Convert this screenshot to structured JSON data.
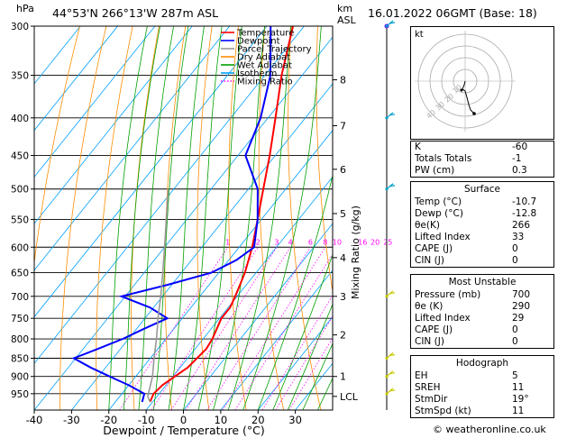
{
  "header": {
    "hpa_label": "hPa",
    "location": "44°53'N  266°13'W  287m  ASL",
    "km_label": "km",
    "asl_label": "ASL",
    "datetime": "16.01.2022  06GMT  (Base: 18)"
  },
  "chart_data": {
    "type": "line",
    "title": "",
    "xlabel": "Dewpoint / Temperature (°C)",
    "ylabel": "hPa",
    "right_ylabel": "Mixing Ratio (g/kg)",
    "xlim": [
      -40,
      40
    ],
    "ylim": [
      300,
      1000
    ],
    "y_scale": "log",
    "x_ticks": [
      -40,
      -30,
      -20,
      -10,
      0,
      10,
      20,
      30
    ],
    "x_tick_labels": [
      "-40",
      "-30",
      "-20",
      "-10",
      "0",
      "10",
      "20",
      "30"
    ],
    "pressure_levels": [
      300,
      350,
      400,
      450,
      500,
      550,
      600,
      650,
      700,
      750,
      800,
      850,
      900,
      950
    ],
    "pressure_labels": [
      "300",
      "350",
      "400",
      "450",
      "500",
      "550",
      "600",
      "650",
      "700",
      "750",
      "800",
      "850",
      "900",
      "950"
    ],
    "km_ticks": [
      {
        "label": "8",
        "p": 355
      },
      {
        "label": "7",
        "p": 410
      },
      {
        "label": "6",
        "p": 470
      },
      {
        "label": "5",
        "p": 540
      },
      {
        "label": "4",
        "p": 620
      },
      {
        "label": "3",
        "p": 700
      },
      {
        "label": "2",
        "p": 790
      },
      {
        "label": "1",
        "p": 900
      },
      {
        "label": "LCL",
        "p": 958
      }
    ],
    "mixing_ratio_labels": [
      "1",
      "2",
      "3",
      "4",
      "6",
      "8",
      "10",
      "16",
      "20",
      "25"
    ],
    "mixing_ratio_values": [
      1,
      2,
      3,
      4,
      6,
      8,
      10,
      16,
      20,
      25
    ],
    "legend": [
      {
        "name": "Temperature",
        "color": "#ff0000"
      },
      {
        "name": "Dewpoint",
        "color": "#0000ff"
      },
      {
        "name": "Parcel Trajectory",
        "color": "#999999"
      },
      {
        "name": "Dry Adiabat",
        "color": "#ff8c00"
      },
      {
        "name": "Wet Adiabat",
        "color": "#00a000"
      },
      {
        "name": "Isotherm",
        "color": "#00a0ff"
      },
      {
        "name": "Mixing Ratio",
        "color": "#ff00ff"
      }
    ],
    "legend_position": "top-right",
    "series": [
      {
        "name": "Temperature",
        "color": "#ff0000",
        "points": [
          {
            "p": 975,
            "t": -10.7
          },
          {
            "p": 950,
            "t": -11.5
          },
          {
            "p": 925,
            "t": -11.0
          },
          {
            "p": 900,
            "t": -9.5
          },
          {
            "p": 875,
            "t": -8.0
          },
          {
            "p": 850,
            "t": -7.5
          },
          {
            "p": 825,
            "t": -7.0
          },
          {
            "p": 800,
            "t": -7.5
          },
          {
            "p": 775,
            "t": -8.5
          },
          {
            "p": 750,
            "t": -9.5
          },
          {
            "p": 725,
            "t": -9.5
          },
          {
            "p": 700,
            "t": -10.5
          },
          {
            "p": 650,
            "t": -13.0
          },
          {
            "p": 600,
            "t": -16.5
          },
          {
            "p": 550,
            "t": -21.0
          },
          {
            "p": 500,
            "t": -26.0
          },
          {
            "p": 450,
            "t": -31.5
          },
          {
            "p": 400,
            "t": -38.0
          },
          {
            "p": 350,
            "t": -45.5
          },
          {
            "p": 300,
            "t": -53.0
          }
        ]
      },
      {
        "name": "Dewpoint",
        "color": "#0000ff",
        "points": [
          {
            "p": 975,
            "t": -12.8
          },
          {
            "p": 950,
            "t": -14.0
          },
          {
            "p": 925,
            "t": -20.0
          },
          {
            "p": 900,
            "t": -27.0
          },
          {
            "p": 875,
            "t": -34.0
          },
          {
            "p": 850,
            "t": -40.5
          },
          {
            "p": 825,
            "t": -36.0
          },
          {
            "p": 800,
            "t": -31.5
          },
          {
            "p": 775,
            "t": -28.0
          },
          {
            "p": 750,
            "t": -24.0
          },
          {
            "p": 725,
            "t": -31.0
          },
          {
            "p": 700,
            "t": -41.0
          },
          {
            "p": 675,
            "t": -31.0
          },
          {
            "p": 650,
            "t": -22.0
          },
          {
            "p": 625,
            "t": -18.0
          },
          {
            "p": 600,
            "t": -16.0
          },
          {
            "p": 550,
            "t": -21.0
          },
          {
            "p": 500,
            "t": -27.5
          },
          {
            "p": 450,
            "t": -38.0
          },
          {
            "p": 400,
            "t": -42.0
          },
          {
            "p": 350,
            "t": -48.5
          },
          {
            "p": 300,
            "t": -59.0
          }
        ]
      },
      {
        "name": "Parcel Trajectory",
        "color": "#999999",
        "points": [
          {
            "p": 975,
            "t": -10.7
          },
          {
            "p": 958,
            "t": -12.5
          },
          {
            "p": 900,
            "t": -15.5
          },
          {
            "p": 850,
            "t": -19.0
          },
          {
            "p": 800,
            "t": -22.5
          },
          {
            "p": 750,
            "t": -26.5
          },
          {
            "p": 700,
            "t": -30.5
          },
          {
            "p": 650,
            "t": -35.0
          },
          {
            "p": 600,
            "t": -40.0
          },
          {
            "p": 550,
            "t": -45.5
          },
          {
            "p": 500,
            "t": -51.5
          }
        ]
      }
    ],
    "wind_barbs_p": [
      300,
      400,
      500,
      700,
      850,
      900,
      950
    ]
  },
  "hodograph": {
    "kt_label": "kt",
    "ring_labels": [
      "10",
      "20",
      "30",
      "40"
    ]
  },
  "indices": {
    "rows": [
      {
        "label": "K",
        "value": "-60"
      },
      {
        "label": "Totals Totals",
        "value": "-1"
      },
      {
        "label": "PW (cm)",
        "value": "0.3"
      }
    ]
  },
  "surface": {
    "title": "Surface",
    "rows": [
      {
        "label": "Temp (°C)",
        "value": "-10.7"
      },
      {
        "label": "Dewp (°C)",
        "value": "-12.8"
      },
      {
        "label": "θe(K)",
        "value": "266"
      },
      {
        "label": "Lifted Index",
        "value": "33"
      },
      {
        "label": "CAPE (J)",
        "value": "0"
      },
      {
        "label": "CIN (J)",
        "value": "0"
      }
    ]
  },
  "most_unstable": {
    "title": "Most Unstable",
    "rows": [
      {
        "label": "Pressure (mb)",
        "value": "700"
      },
      {
        "label": "θe (K)",
        "value": "290"
      },
      {
        "label": "Lifted Index",
        "value": "29"
      },
      {
        "label": "CAPE (J)",
        "value": "0"
      },
      {
        "label": "CIN (J)",
        "value": "0"
      }
    ]
  },
  "hodograph_table": {
    "title": "Hodograph",
    "rows": [
      {
        "label": "EH",
        "value": "5"
      },
      {
        "label": "SREH",
        "value": "11"
      },
      {
        "label": "StmDir",
        "value": "19°"
      },
      {
        "label": "StmSpd (kt)",
        "value": "11"
      }
    ]
  },
  "footer": {
    "copyright": "© weatheronline.co.uk"
  }
}
